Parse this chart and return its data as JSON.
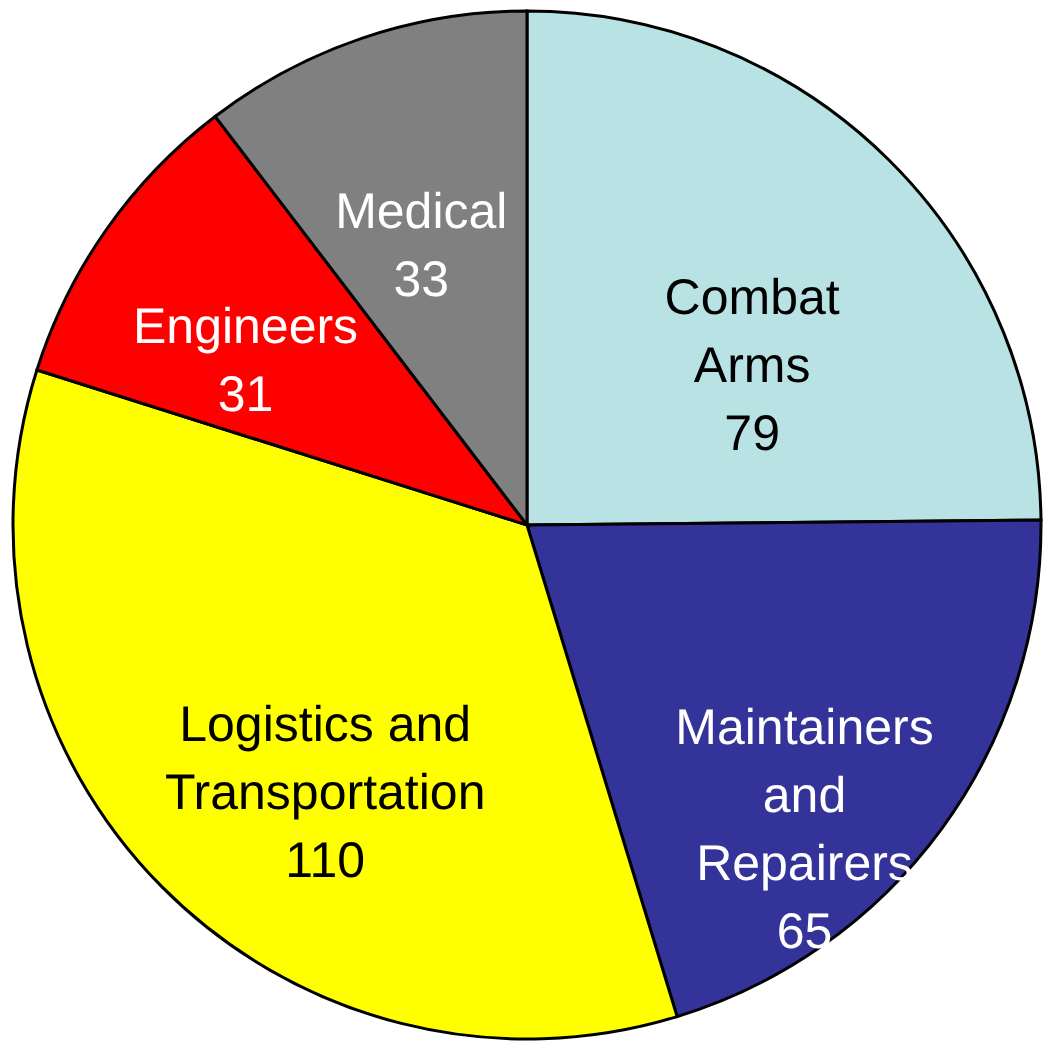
{
  "chart_data": {
    "type": "pie",
    "categories": [
      "Combat Arms",
      "Maintainers and Repairers",
      "Logistics and Transportation",
      "Engineers",
      "Medical"
    ],
    "values": [
      79,
      65,
      110,
      31,
      33
    ],
    "colors": [
      "#b8e2e4",
      "#333399",
      "#ffff00",
      "#ff0000",
      "#808080"
    ],
    "data_labels": true
  }
}
